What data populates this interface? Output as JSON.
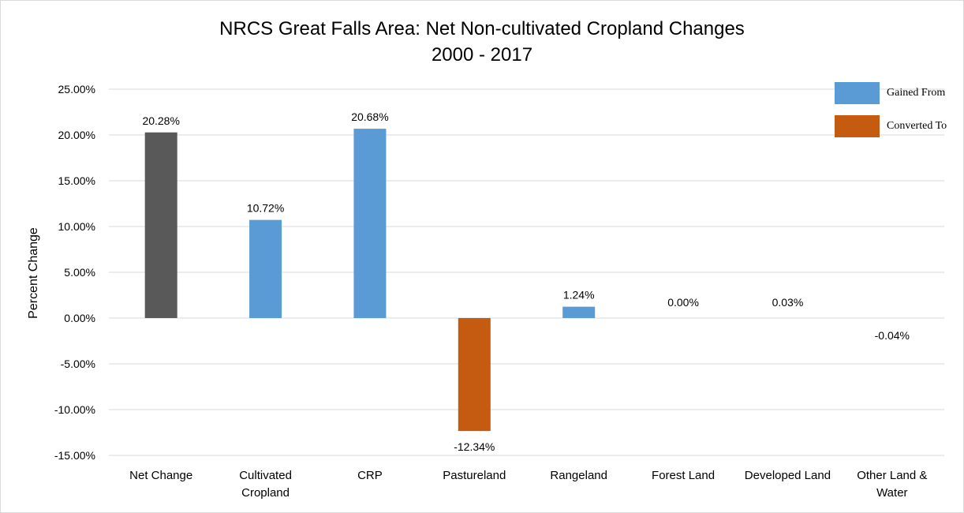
{
  "chart_data": {
    "type": "bar",
    "title": "NRCS Great Falls Area: Net Non-cultivated Cropland Changes\n2000 - 2017",
    "ylabel": "Percent Change",
    "xlabel": "",
    "ylim": [
      -15,
      25
    ],
    "yticks": [
      25,
      20,
      15,
      10,
      5,
      0,
      -5,
      -10,
      -15
    ],
    "ytick_labels": [
      "25.00%",
      "20.00%",
      "15.00%",
      "10.00%",
      "5.00%",
      "0.00%",
      "-5.00%",
      "-10.00%",
      "-15.00%"
    ],
    "grid": true,
    "legend_position": "top-right",
    "categories": [
      [
        "Net Change"
      ],
      [
        "Cultivated",
        "Cropland"
      ],
      [
        "CRP"
      ],
      [
        "Pastureland"
      ],
      [
        "Rangeland"
      ],
      [
        "Forest Land"
      ],
      [
        "Developed Land"
      ],
      [
        "Other Land &",
        "Water"
      ]
    ],
    "values": [
      20.28,
      10.72,
      20.68,
      -12.34,
      1.24,
      0.0,
      0.03,
      -0.04
    ],
    "data_labels": [
      "20.28%",
      "10.72%",
      "20.68%",
      "-12.34%",
      "1.24%",
      "0.00%",
      "0.03%",
      "-0.04%"
    ],
    "bar_colors": [
      "#595959",
      "#5b9bd5",
      "#5b9bd5",
      "#c55a11",
      "#5b9bd5",
      "#5b9bd5",
      "#5b9bd5",
      "#c55a11"
    ],
    "legend": [
      {
        "label": "Gained From",
        "color": "#5b9bd5"
      },
      {
        "label": "Converted To",
        "color": "#c55a11"
      }
    ]
  }
}
